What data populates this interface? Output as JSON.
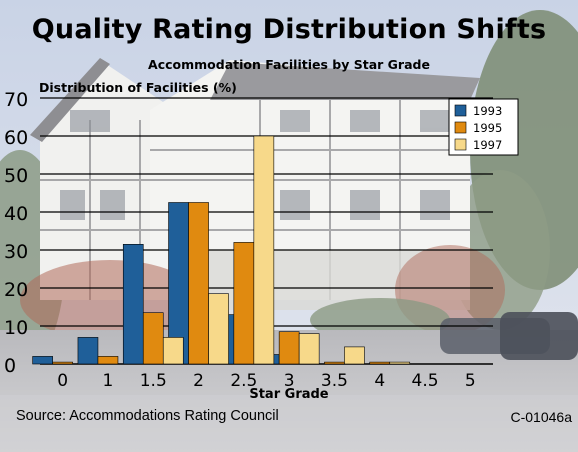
{
  "chart_data": {
    "type": "bar",
    "title": "Quality Rating Distribution Shifts",
    "subtitle": "Accommodation Facilities by Star Grade",
    "ylabel": "Distribution of Facilities (%)",
    "xlabel": "Star Grade",
    "categories": [
      "0",
      "1",
      "1.5",
      "2",
      "2.5",
      "3",
      "3.5",
      "4",
      "4.5",
      "5"
    ],
    "series": [
      {
        "name": "1993",
        "color": "#1f5f99",
        "values": [
          2,
          7,
          31.5,
          42.5,
          13,
          2.5,
          0,
          0,
          0,
          0
        ]
      },
      {
        "name": "1995",
        "color": "#e08a10",
        "values": [
          0.5,
          2,
          13.5,
          42.5,
          32,
          8.5,
          0.5,
          0.5,
          0,
          0
        ]
      },
      {
        "name": "1997",
        "color": "#f7d98a",
        "values": [
          0,
          0,
          7,
          18.5,
          60,
          8,
          4.5,
          0.5,
          0,
          0
        ]
      }
    ],
    "yticks": [
      0,
      10,
      20,
      30,
      40,
      50,
      60,
      70
    ],
    "ylim": [
      0,
      70
    ],
    "grid": true,
    "legend": "top-right"
  },
  "footer": {
    "source": "Source: Accommodations Rating Council",
    "code": "C-01046a"
  }
}
